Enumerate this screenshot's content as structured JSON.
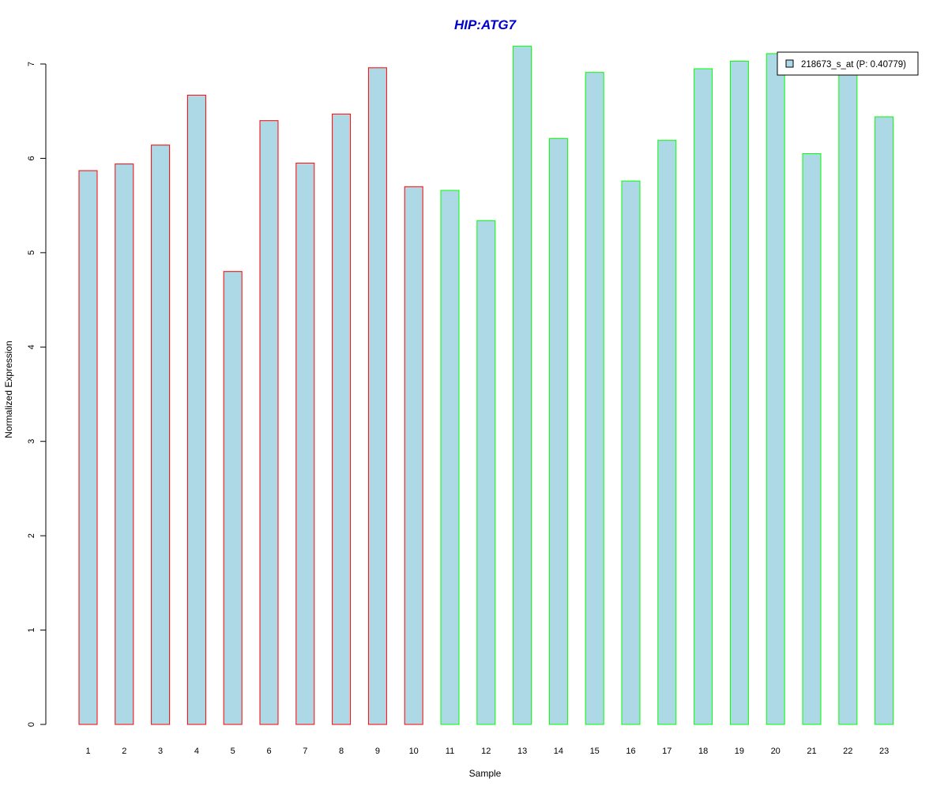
{
  "chart_data": {
    "type": "bar",
    "title": "HIP:ATG7",
    "xlabel": "Sample",
    "ylabel": "Normalized Expression",
    "categories": [
      "1",
      "2",
      "3",
      "4",
      "5",
      "6",
      "7",
      "8",
      "9",
      "10",
      "11",
      "12",
      "13",
      "14",
      "15",
      "16",
      "17",
      "18",
      "19",
      "20",
      "21",
      "22",
      "23"
    ],
    "values": [
      5.87,
      5.94,
      6.14,
      6.67,
      4.8,
      6.4,
      5.95,
      6.47,
      6.96,
      5.7,
      5.66,
      5.34,
      7.19,
      6.21,
      6.91,
      5.76,
      6.19,
      6.95,
      7.03,
      7.11,
      6.05,
      6.93,
      6.44
    ],
    "border_colors": [
      "#ff0000",
      "#ff0000",
      "#ff0000",
      "#ff0000",
      "#ff0000",
      "#ff0000",
      "#ff0000",
      "#ff0000",
      "#ff0000",
      "#ff0000",
      "#00ff00",
      "#00ff00",
      "#00ff00",
      "#00ff00",
      "#00ff00",
      "#00ff00",
      "#00ff00",
      "#00ff00",
      "#00ff00",
      "#00ff00",
      "#00ff00",
      "#00ff00",
      "#00ff00"
    ],
    "ylim": [
      0,
      7
    ],
    "yticks": [
      0,
      1,
      2,
      3,
      4,
      5,
      6,
      7
    ],
    "fill_color": "#add8e6",
    "title_color": "#0000cd",
    "grid": false,
    "legend": {
      "position": "top-right",
      "entries": [
        {
          "label": "218673_s_at (P: 0.40779)",
          "color": "#add8e6"
        }
      ]
    }
  }
}
